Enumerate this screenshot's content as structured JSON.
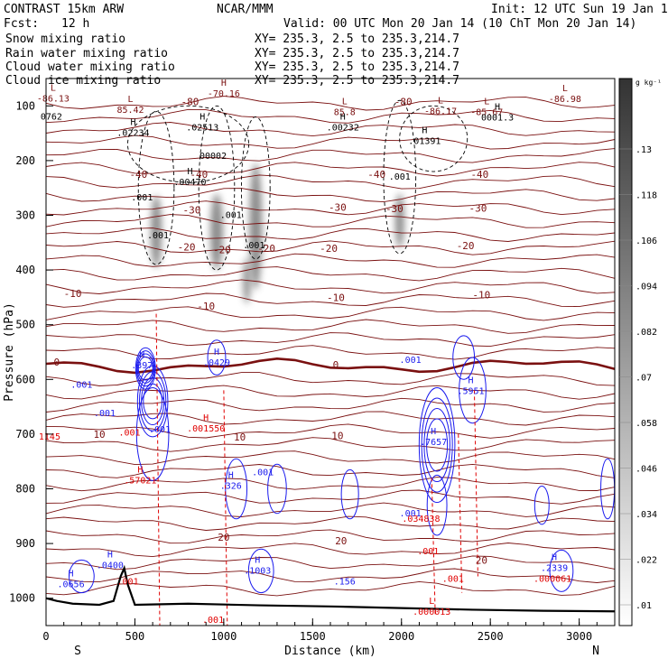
{
  "header": {
    "model": "CONTRAST 15km ARW",
    "center": "NCAR/MMM",
    "init": "Init: 12 UTC Sun 19 Jan 14",
    "fcst_label": "Fcst:",
    "fcst_value": "12 h",
    "valid": "Valid: 00 UTC Mon 20 Jan 14 (10 ChT Mon 20 Jan 14)"
  },
  "fields": [
    {
      "name": "Snow mixing ratio",
      "xy": "XY= 235.3,  2.5 to 235.3,214.7",
      "color": "#000000"
    },
    {
      "name": "Rain water mixing ratio",
      "xy": "XY= 235.3,  2.5 to 235.3,214.7",
      "color": "#e00000"
    },
    {
      "name": "Cloud water mixing ratio",
      "xy": "XY= 235.3,  2.5 to 235.3,214.7",
      "color": "#1a1aee"
    },
    {
      "name": "Cloud ice mixing ratio",
      "xy": "XY= 235.3,  2.5 to 235.3,214.7",
      "color": "#000000"
    }
  ],
  "colors": {
    "temperature": "#7a1010",
    "rain": "#e00000",
    "cloud_water": "#1a1aee",
    "terrain": "#000000"
  },
  "chart_data": {
    "type": "cross-section",
    "xlabel": "Distance (km)",
    "ylabel": "Pressure (hPa)",
    "xlim": [
      0,
      3200
    ],
    "ylim": [
      1050,
      50
    ],
    "x_ticks": [
      0,
      500,
      1000,
      1500,
      2000,
      2500,
      3000
    ],
    "y_ticks": [
      100,
      200,
      300,
      400,
      500,
      600,
      700,
      800,
      900,
      1000
    ],
    "left_end": "S",
    "right_end": "N",
    "colorbar": {
      "unit": "g kg⁻¹",
      "ticks": [
        ".13",
        ".118",
        ".106",
        ".094",
        ".082",
        ".07",
        ".058",
        ".046",
        ".034",
        ".022",
        ".01"
      ],
      "tick_values": [
        0.13,
        0.118,
        0.106,
        0.094,
        0.082,
        0.07,
        0.058,
        0.046,
        0.034,
        0.022,
        0.01
      ]
    },
    "temperature_labels": [
      {
        "text": "-80",
        "x": 810,
        "p": 92
      },
      {
        "text": "-80",
        "x": 2010,
        "p": 92
      },
      {
        "text": "-40",
        "x": 520,
        "p": 225
      },
      {
        "text": "-40",
        "x": 860,
        "p": 225
      },
      {
        "text": "-40",
        "x": 1860,
        "p": 225
      },
      {
        "text": "-40",
        "x": 2440,
        "p": 225
      },
      {
        "text": "-30",
        "x": 820,
        "p": 290
      },
      {
        "text": "-30",
        "x": 1640,
        "p": 285
      },
      {
        "text": "-30",
        "x": 1960,
        "p": 288
      },
      {
        "text": "-30",
        "x": 2430,
        "p": 287
      },
      {
        "text": "-20",
        "x": 790,
        "p": 358
      },
      {
        "text": "-20",
        "x": 990,
        "p": 363
      },
      {
        "text": "-20",
        "x": 1240,
        "p": 360
      },
      {
        "text": "-20",
        "x": 1590,
        "p": 360
      },
      {
        "text": "-20",
        "x": 2360,
        "p": 355
      },
      {
        "text": "-10",
        "x": 150,
        "p": 443
      },
      {
        "text": "-10",
        "x": 900,
        "p": 466
      },
      {
        "text": "-10",
        "x": 1630,
        "p": 450
      },
      {
        "text": "-10",
        "x": 2450,
        "p": 445
      },
      {
        "text": "0",
        "x": 60,
        "p": 568
      },
      {
        "text": "0",
        "x": 1630,
        "p": 573
      },
      {
        "text": "10",
        "x": 300,
        "p": 700
      },
      {
        "text": "10",
        "x": 1090,
        "p": 705
      },
      {
        "text": "10",
        "x": 1640,
        "p": 703
      },
      {
        "text": "20",
        "x": 1000,
        "p": 888
      },
      {
        "text": "20",
        "x": 1660,
        "p": 895
      },
      {
        "text": "20",
        "x": 2450,
        "p": 930
      }
    ],
    "extrema": [
      {
        "mark": "L",
        "value": "-86.13",
        "x": 40,
        "p": 87,
        "color": "#7a1010"
      },
      {
        "mark": "",
        "value": "0762",
        "x": 30,
        "p": 120,
        "color": "#000000"
      },
      {
        "mark": "L",
        "value": "85.42",
        "x": 475,
        "p": 108,
        "color": "#7a1010"
      },
      {
        "mark": "H",
        "value": "-70.16",
        "x": 1000,
        "p": 78,
        "color": "#7a1010"
      },
      {
        "mark": "L",
        "value": "85.8",
        "x": 1680,
        "p": 112,
        "color": "#7a1010"
      },
      {
        "mark": "L",
        "value": "-86.17",
        "x": 2220,
        "p": 110,
        "color": "#7a1010"
      },
      {
        "mark": "L",
        "value": "-85.67",
        "x": 2480,
        "p": 112,
        "color": "#7a1010"
      },
      {
        "mark": "L",
        "value": "-86.98",
        "x": 2920,
        "p": 88,
        "color": "#7a1010"
      },
      {
        "mark": "H",
        "value": ".02234",
        "x": 490,
        "p": 150,
        "color": "#000000"
      },
      {
        "mark": "H",
        "value": ".02513",
        "x": 880,
        "p": 140,
        "color": "#000000"
      },
      {
        "mark": "H",
        "value": ".00232",
        "x": 1670,
        "p": 140,
        "color": "#000000"
      },
      {
        "mark": "H",
        "value": "0001.3",
        "x": 2540,
        "p": 122,
        "color": "#000000"
      },
      {
        "mark": "H",
        "value": ".01391",
        "x": 2130,
        "p": 165,
        "color": "#000000"
      },
      {
        "mark": "",
        "value": "00002",
        "x": 940,
        "p": 192,
        "color": "#000000"
      },
      {
        "mark": "H",
        "value": ".00470",
        "x": 810,
        "p": 240,
        "color": "#000000"
      },
      {
        "mark": "",
        "value": ".001",
        "x": 540,
        "p": 268,
        "color": "#000000"
      },
      {
        "mark": "",
        "value": ".001",
        "x": 1040,
        "p": 300,
        "color": "#000000"
      },
      {
        "mark": "",
        "value": ".001",
        "x": 1990,
        "p": 230,
        "color": "#000000"
      },
      {
        "mark": "",
        "value": ".001",
        "x": 630,
        "p": 337,
        "color": "#000000"
      },
      {
        "mark": "",
        "value": ".001",
        "x": 1170,
        "p": 355,
        "color": "#000000"
      },
      {
        "mark": "H",
        "value": ".397",
        "x": 540,
        "p": 575,
        "color": "#1a1aee"
      },
      {
        "mark": "H",
        "value": ".0429",
        "x": 960,
        "p": 570,
        "color": "#1a1aee"
      },
      {
        "mark": "",
        "value": ".001",
        "x": 200,
        "p": 610,
        "color": "#1a1aee"
      },
      {
        "mark": "",
        "value": ".001",
        "x": 330,
        "p": 662,
        "color": "#1a1aee"
      },
      {
        "mark": "",
        "value": ".001",
        "x": 640,
        "p": 692,
        "color": "#1a1aee"
      },
      {
        "mark": "",
        "value": ".001",
        "x": 2050,
        "p": 565,
        "color": "#1a1aee"
      },
      {
        "mark": "H",
        "value": ".5951",
        "x": 2390,
        "p": 622,
        "color": "#1a1aee"
      },
      {
        "mark": "H",
        "value": ".7657",
        "x": 2180,
        "p": 715,
        "color": "#1a1aee"
      },
      {
        "mark": "H",
        "value": ".326",
        "x": 1040,
        "p": 795,
        "color": "#1a1aee"
      },
      {
        "mark": "",
        "value": ".001",
        "x": 1220,
        "p": 770,
        "color": "#1a1aee"
      },
      {
        "mark": "",
        "value": ".001",
        "x": 2050,
        "p": 845,
        "color": "#1a1aee"
      },
      {
        "mark": "H",
        "value": ".1003",
        "x": 1190,
        "p": 950,
        "color": "#1a1aee"
      },
      {
        "mark": "H",
        "value": ".0400",
        "x": 360,
        "p": 940,
        "color": "#1a1aee"
      },
      {
        "mark": "H",
        "value": ".0656",
        "x": 140,
        "p": 975,
        "color": "#1a1aee"
      },
      {
        "mark": "",
        "value": ".156",
        "x": 1680,
        "p": 970,
        "color": "#1a1aee"
      },
      {
        "mark": "H",
        "value": ".2339",
        "x": 2860,
        "p": 945,
        "color": "#1a1aee"
      },
      {
        "mark": "H",
        "value": ".001550",
        "x": 900,
        "p": 690,
        "color": "#e00000"
      },
      {
        "mark": "",
        "value": "1145",
        "x": 20,
        "p": 705,
        "color": "#e00000"
      },
      {
        "mark": "",
        "value": ".001",
        "x": 470,
        "p": 698,
        "color": "#e00000"
      },
      {
        "mark": "H",
        "value": ".57021",
        "x": 530,
        "p": 785,
        "color": "#e00000"
      },
      {
        "mark": "",
        "value": ".034838",
        "x": 2110,
        "p": 855,
        "color": "#e00000"
      },
      {
        "mark": "",
        "value": ".001",
        "x": 2150,
        "p": 915,
        "color": "#e00000"
      },
      {
        "mark": "",
        "value": ".001",
        "x": 2290,
        "p": 965,
        "color": "#e00000"
      },
      {
        "mark": "",
        "value": ".001",
        "x": 460,
        "p": 970,
        "color": "#e00000"
      },
      {
        "mark": "L",
        "value": ".000013",
        "x": 2170,
        "p": 1025,
        "color": "#e00000"
      },
      {
        "mark": "",
        "value": ".001",
        "x": 940,
        "p": 1040,
        "color": "#e00000"
      },
      {
        "mark": "",
        "value": ".000061",
        "x": 2850,
        "p": 965,
        "color": "#e00000"
      }
    ]
  }
}
